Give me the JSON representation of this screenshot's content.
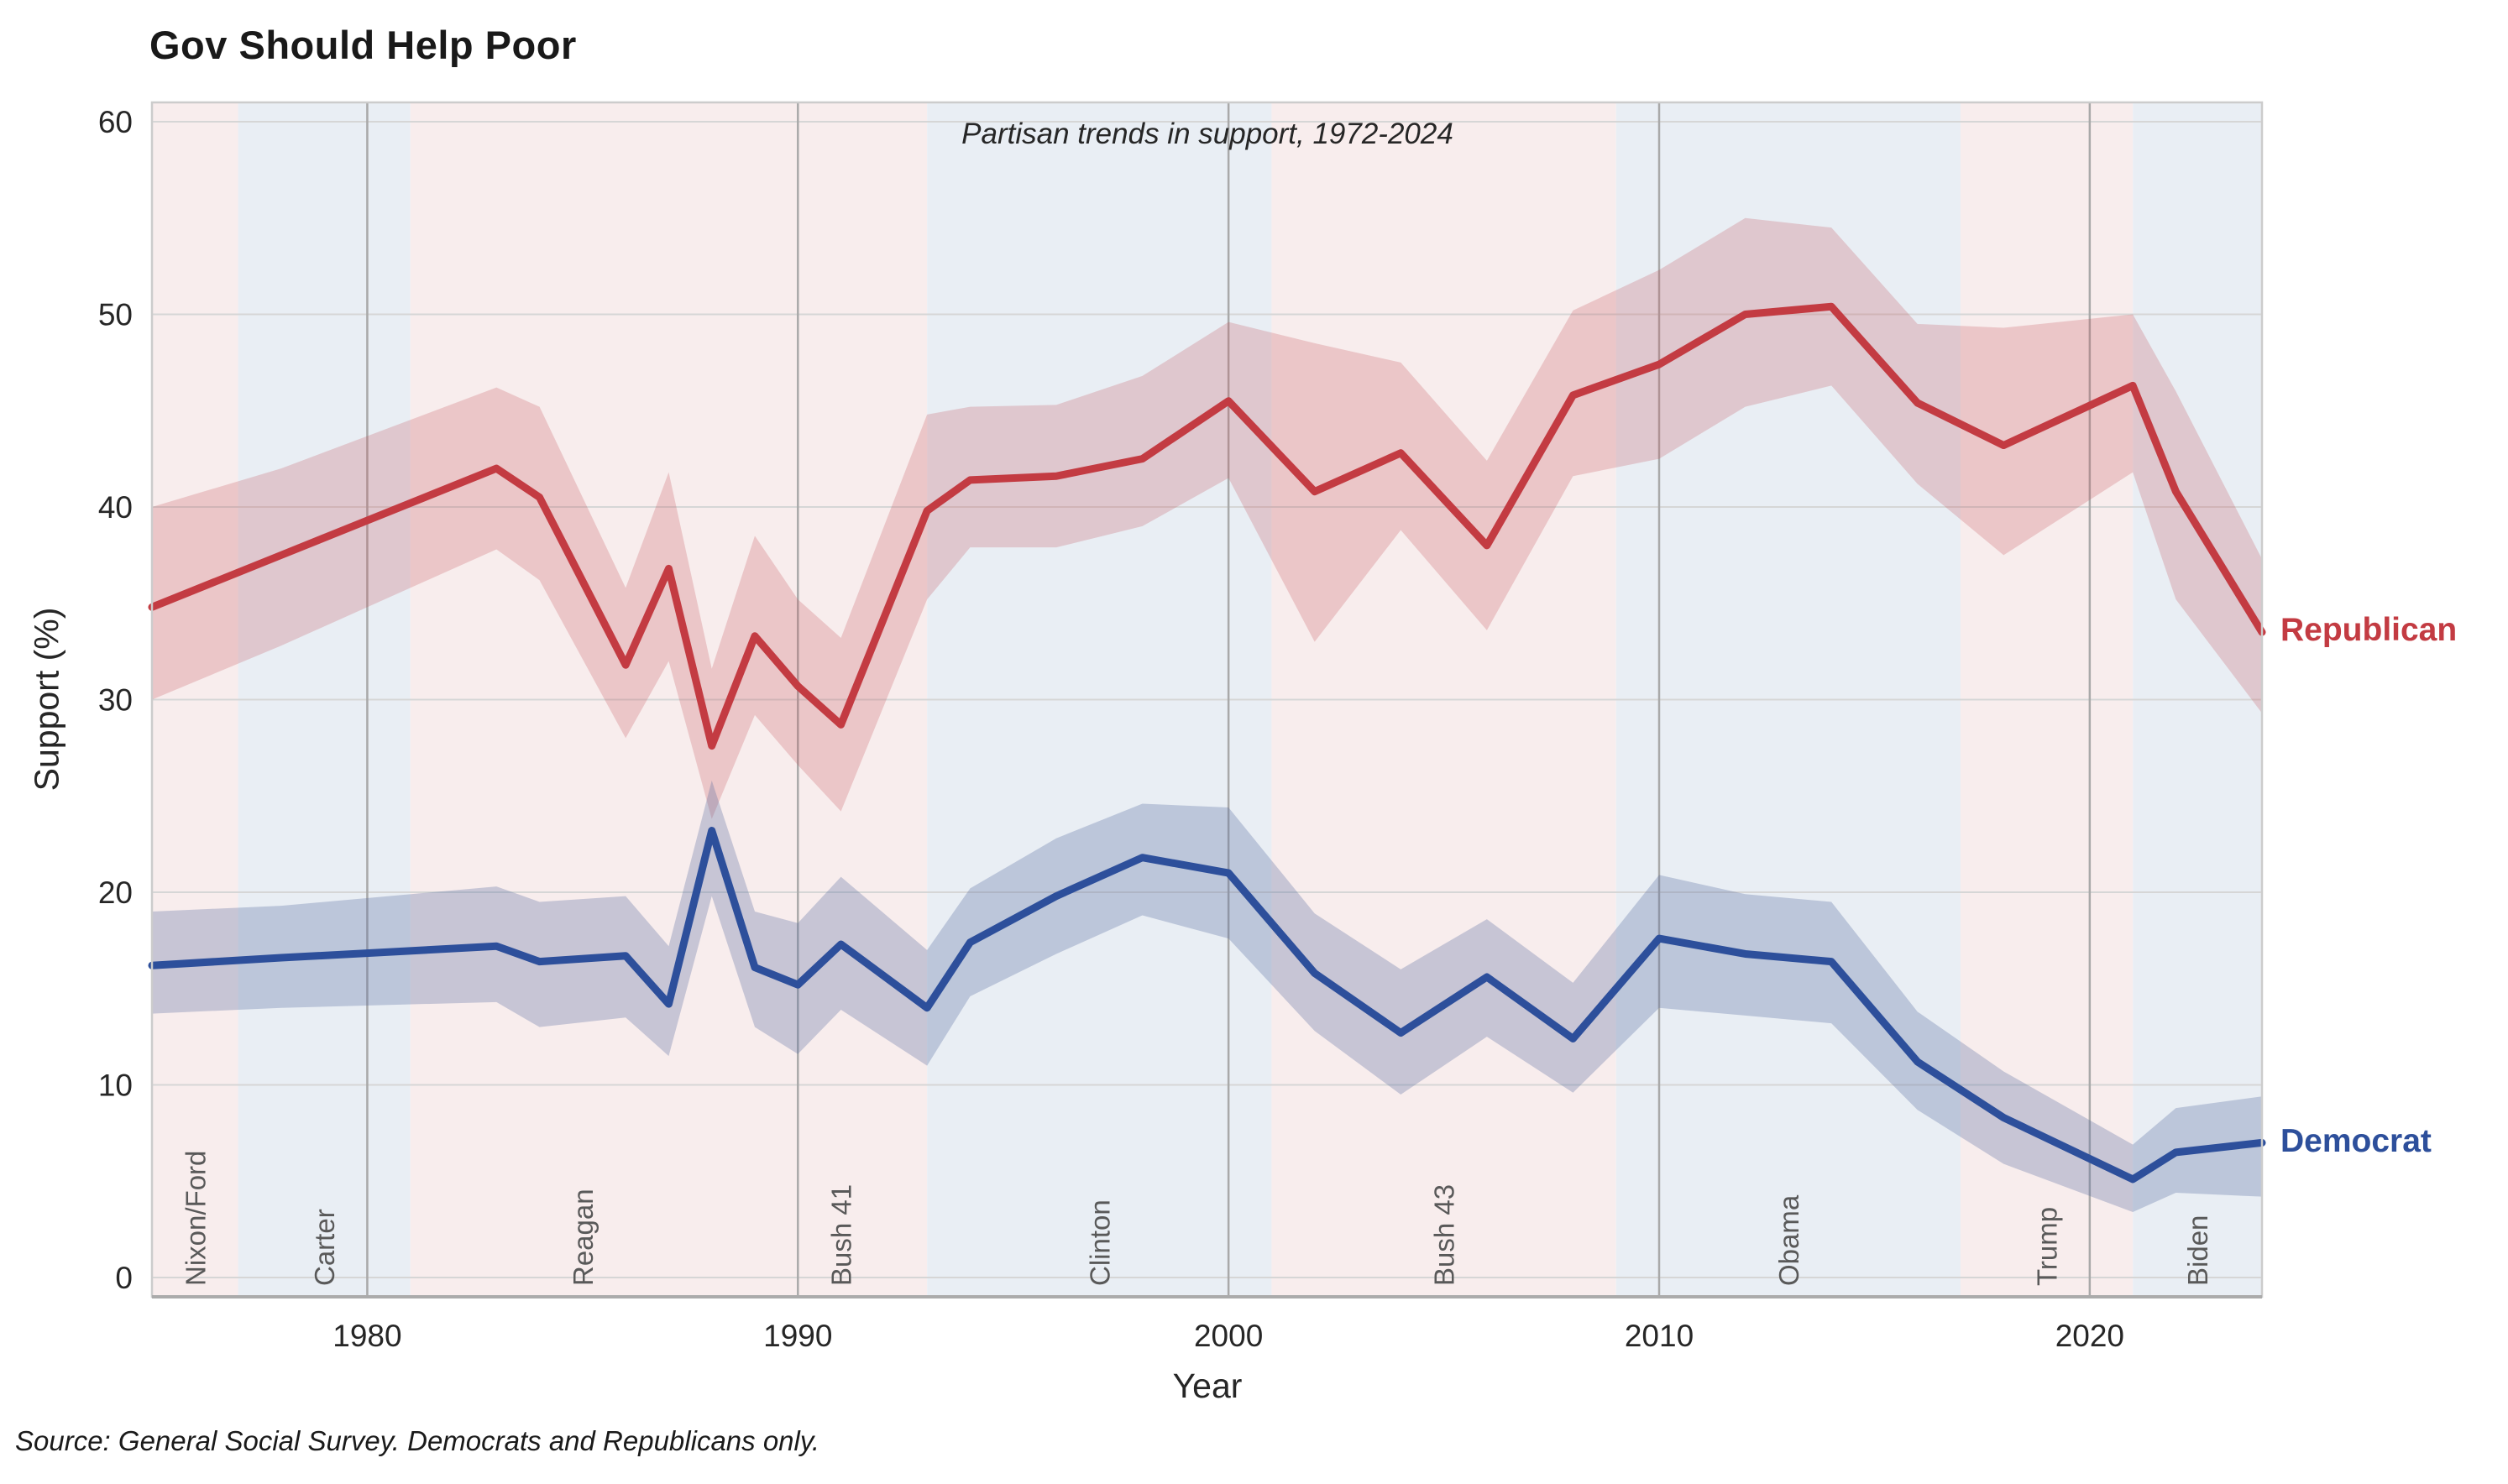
{
  "title": "Gov Should Help Poor",
  "subtitle": "Partisan trends in support, 1972-2024",
  "source_note": "Source: General Social Survey. Democrats and Republicans only.",
  "colors": {
    "republican_line": "#c33b42",
    "democrat_line": "#2d4f9b",
    "republican_band": "rgba(197,84,90,0.25)",
    "democrat_band": "rgba(86,106,160,0.30)",
    "era_republican_bg": "#f8eded",
    "era_democrat_bg": "#e9eef4",
    "grid_horizontal": "#d6d6d6",
    "grid_vertical": "#a9a9a9",
    "plot_border": "#cccccc",
    "bottom_axis": "#ababab",
    "tick_text": "#262626",
    "era_label_text": "#595959"
  },
  "chart_data": {
    "type": "line",
    "title": "Gov Should Help Poor",
    "subtitle": "Partisan trends in support, 1972-2024",
    "xlabel": "Year",
    "ylabel": "Support (%)",
    "xlim": [
      1975,
      2024
    ],
    "ylim": [
      -1,
      61
    ],
    "x_ticks": [
      1980,
      1990,
      2000,
      2010,
      2020
    ],
    "y_ticks": [
      0,
      10,
      20,
      30,
      40,
      50,
      60
    ],
    "grid": true,
    "legend_position": "right-of-plot-end-labels",
    "x": [
      1975,
      1978,
      1983,
      1984,
      1986,
      1987,
      1988,
      1989,
      1990,
      1991,
      1993,
      1994,
      1996,
      1998,
      2000,
      2002,
      2004,
      2006,
      2008,
      2010,
      2012,
      2014,
      2016,
      2018,
      2021,
      2022,
      2024
    ],
    "series": [
      {
        "name": "Republican",
        "values": [
          34.8,
          37.5,
          42.0,
          40.5,
          31.8,
          36.8,
          27.6,
          33.3,
          30.7,
          28.7,
          39.8,
          41.4,
          41.6,
          42.5,
          45.5,
          40.8,
          42.8,
          38.0,
          45.8,
          47.4,
          50.0,
          50.4,
          45.4,
          43.2,
          46.3,
          40.8,
          33.5
        ],
        "band_lower": [
          30.0,
          32.8,
          37.8,
          36.2,
          28.0,
          32.0,
          23.8,
          29.2,
          26.6,
          24.2,
          35.2,
          37.9,
          37.9,
          39.0,
          41.5,
          33.0,
          38.8,
          33.6,
          41.6,
          42.5,
          45.2,
          46.3,
          41.2,
          37.5,
          41.8,
          35.2,
          29.3
        ],
        "band_upper": [
          40.0,
          42.0,
          46.2,
          45.2,
          35.8,
          41.8,
          31.6,
          38.5,
          35.2,
          33.2,
          44.8,
          45.2,
          45.3,
          46.8,
          49.6,
          48.5,
          47.5,
          42.4,
          50.2,
          52.3,
          55.0,
          54.5,
          49.5,
          49.3,
          50.0,
          46.0,
          37.3
        ]
      },
      {
        "name": "Democrat",
        "values": [
          16.2,
          16.6,
          17.2,
          16.4,
          16.7,
          14.2,
          23.2,
          16.1,
          15.2,
          17.3,
          14.0,
          17.4,
          19.8,
          21.8,
          21.0,
          15.8,
          12.7,
          15.6,
          12.4,
          17.6,
          16.8,
          16.4,
          11.2,
          8.3,
          5.1,
          6.5,
          7.0
        ],
        "band_lower": [
          13.7,
          14.0,
          14.3,
          13.0,
          13.5,
          11.5,
          19.8,
          13.0,
          11.6,
          13.9,
          11.0,
          14.6,
          16.8,
          18.8,
          17.6,
          12.8,
          9.5,
          12.5,
          9.6,
          14.0,
          13.6,
          13.2,
          8.7,
          5.9,
          3.4,
          4.4,
          4.2
        ],
        "band_upper": [
          19.0,
          19.3,
          20.3,
          19.5,
          19.8,
          17.2,
          25.8,
          19.0,
          18.4,
          20.8,
          17.0,
          20.2,
          22.8,
          24.6,
          24.4,
          18.9,
          16.0,
          18.6,
          15.3,
          20.9,
          19.9,
          19.5,
          13.8,
          10.7,
          6.9,
          8.8,
          9.4
        ]
      }
    ],
    "eras": [
      {
        "label": "Nixon/Ford",
        "start": 1975,
        "end": 1977,
        "party": "R"
      },
      {
        "label": "Carter",
        "start": 1977,
        "end": 1981,
        "party": "D"
      },
      {
        "label": "Reagan",
        "start": 1981,
        "end": 1989,
        "party": "R"
      },
      {
        "label": "Bush 41",
        "start": 1989,
        "end": 1993,
        "party": "R"
      },
      {
        "label": "Clinton",
        "start": 1993,
        "end": 2001,
        "party": "D"
      },
      {
        "label": "Bush 43",
        "start": 2001,
        "end": 2009,
        "party": "R"
      },
      {
        "label": "Obama",
        "start": 2009,
        "end": 2017,
        "party": "D"
      },
      {
        "label": "Trump",
        "start": 2017,
        "end": 2021,
        "party": "R"
      },
      {
        "label": "Biden",
        "start": 2021,
        "end": 2024,
        "party": "D"
      }
    ]
  }
}
